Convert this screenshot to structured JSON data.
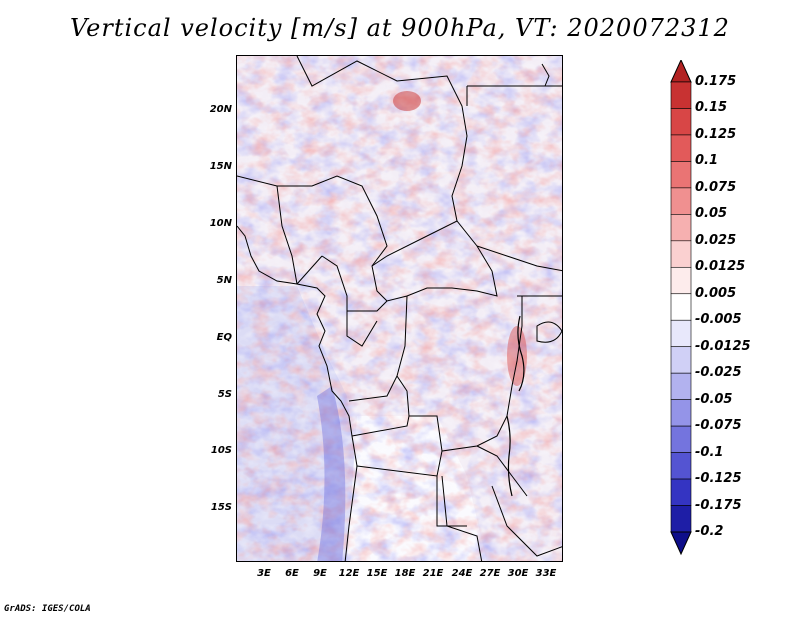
{
  "title": "Vertical velocity [m/s] at 900hPa, VT: 2020072312",
  "credit": "GrADS: IGES/COLA",
  "map": {
    "lon_ticks": [
      "3E",
      "6E",
      "9E",
      "12E",
      "15E",
      "18E",
      "21E",
      "24E",
      "27E",
      "30E",
      "33E"
    ],
    "lat_ticks": [
      "20N",
      "15N",
      "10N",
      "5N",
      "EQ",
      "5S",
      "10S",
      "15S"
    ],
    "lon_range": [
      0,
      35
    ],
    "lat_range": [
      -20,
      24.5
    ]
  },
  "colorbar": {
    "labels": [
      "0.175",
      "0.15",
      "0.125",
      "0.1",
      "0.075",
      "0.05",
      "0.025",
      "0.0125",
      "0.005",
      "-0.005",
      "-0.0125",
      "-0.025",
      "-0.05",
      "-0.075",
      "-0.1",
      "-0.125",
      "-0.175",
      "-0.2"
    ],
    "colors": [
      "#b22222",
      "#c83232",
      "#d84646",
      "#e25a5a",
      "#ea7474",
      "#f09090",
      "#f6b0b0",
      "#fad0d0",
      "#fdecec",
      "#ffffff",
      "#e8e8fb",
      "#d0d0f6",
      "#b2b2ef",
      "#9494e8",
      "#7474de",
      "#5454d2",
      "#3434c2",
      "#1e1ea6",
      "#0e0e8a"
    ]
  }
}
